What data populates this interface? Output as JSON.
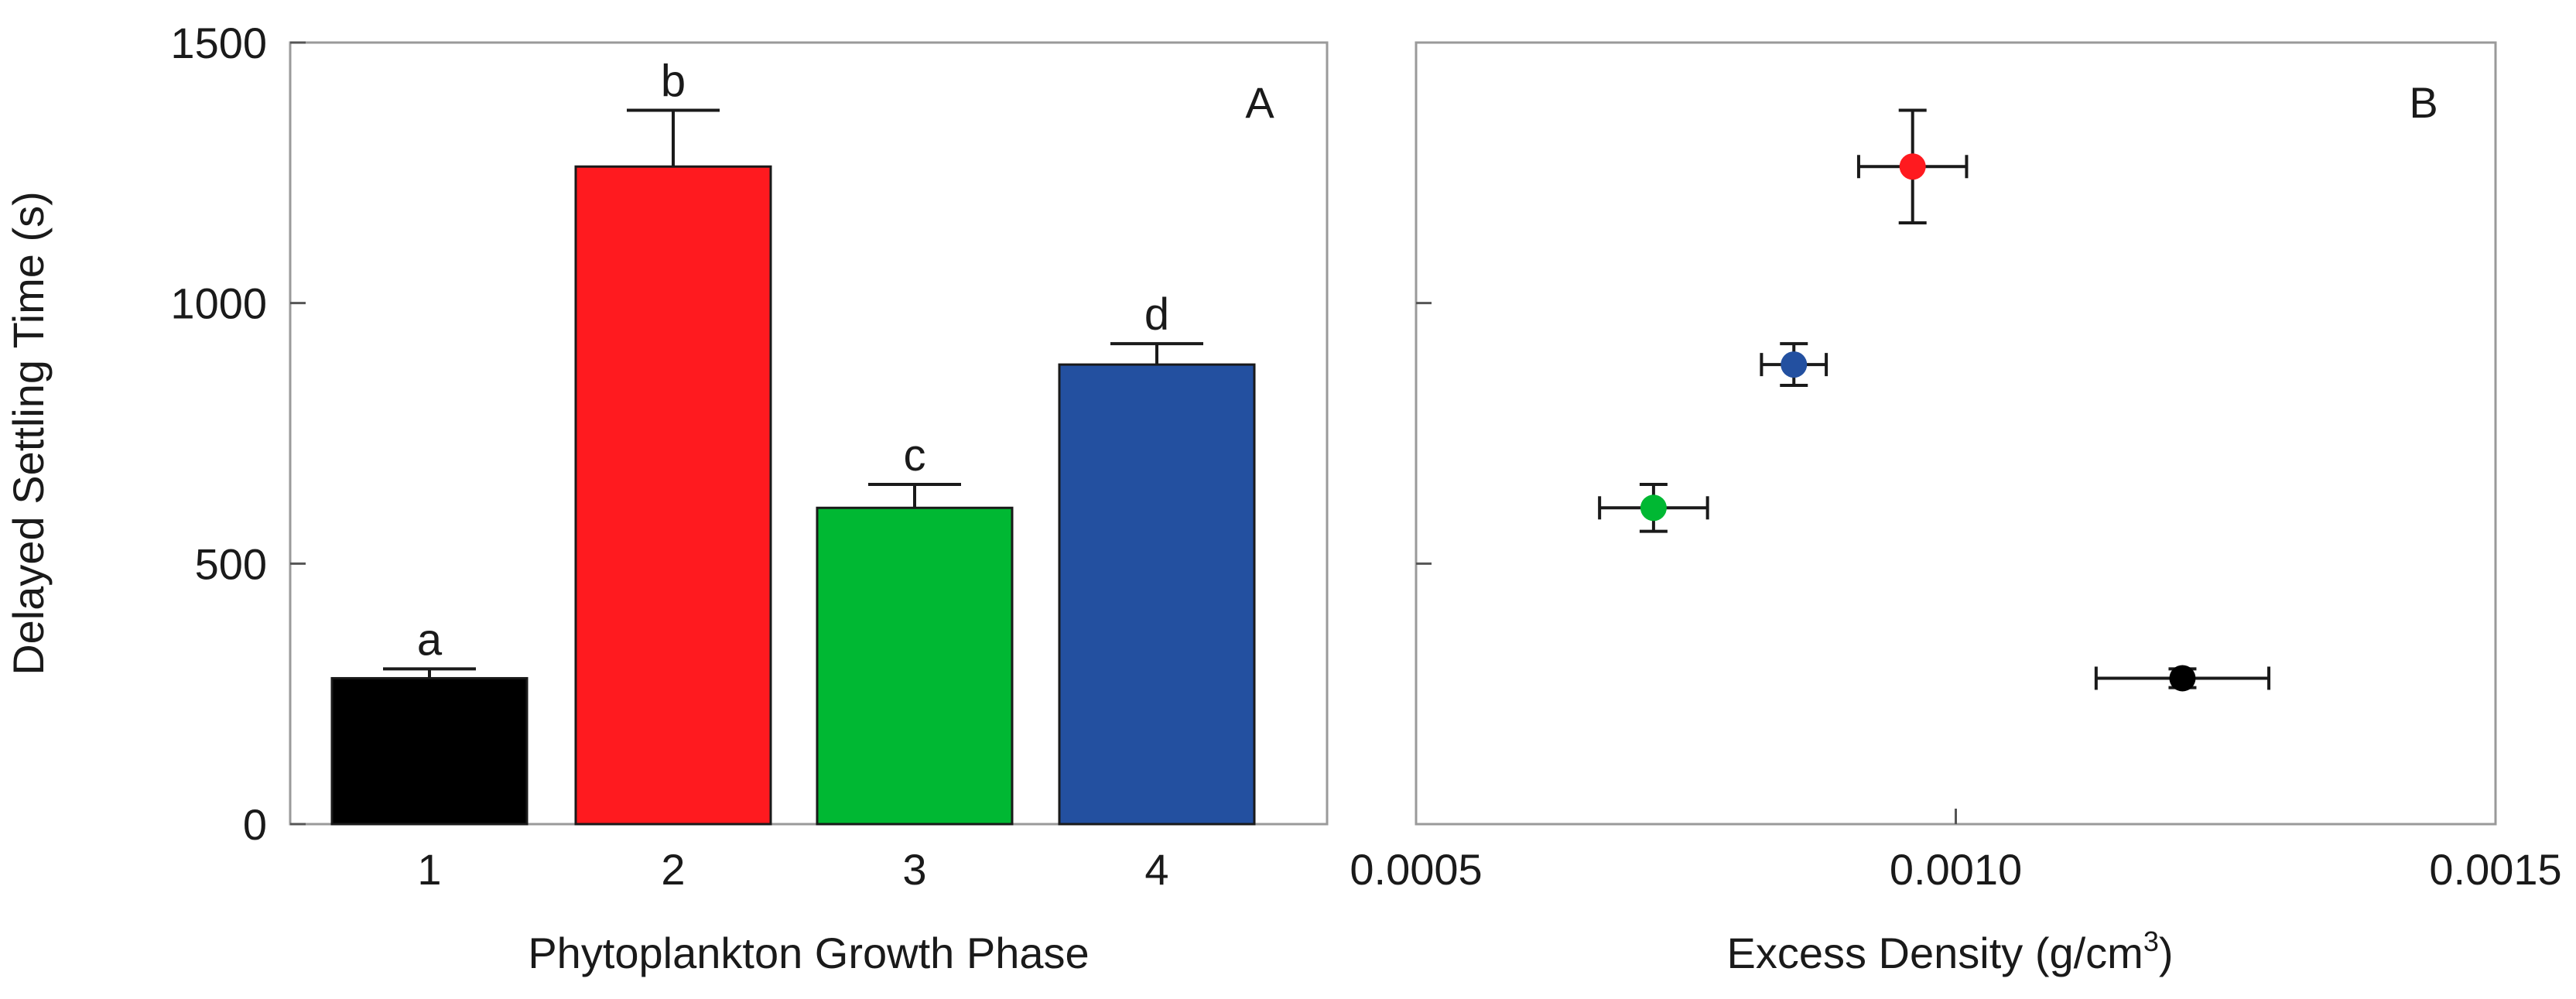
{
  "chart_data": [
    {
      "panel": "A",
      "type": "bar",
      "panel_label": "A",
      "categories": [
        "1",
        "2",
        "3",
        "4"
      ],
      "values": [
        280,
        1262,
        607,
        882
      ],
      "errors": [
        18,
        108,
        45,
        40
      ],
      "significance_letters": [
        "a",
        "b",
        "c",
        "d"
      ],
      "colors": [
        "#000000",
        "#ff1a1f",
        "#00b833",
        "#2350a0"
      ],
      "xlabel": "Phytoplankton Growth Phase",
      "ylabel": "Delayed Settling Time (s)",
      "ylim": [
        0,
        1500
      ],
      "yticks": [
        "0",
        "500",
        "1000",
        "1500"
      ],
      "grid": false
    },
    {
      "panel": "B",
      "type": "scatter",
      "panel_label": "B",
      "points": [
        {
          "x": 0.00121,
          "y": 280,
          "xerr": 8e-05,
          "yerr": 18,
          "color": "#000000"
        },
        {
          "x": 0.00096,
          "y": 1262,
          "xerr": 5e-05,
          "yerr": 108,
          "color": "#ff1a1f"
        },
        {
          "x": 0.00072,
          "y": 607,
          "xerr": 5e-05,
          "yerr": 45,
          "color": "#00b833"
        },
        {
          "x": 0.00085,
          "y": 882,
          "xerr": 3e-05,
          "yerr": 40,
          "color": "#2350a0"
        }
      ],
      "xlabel_main": "Excess Density (g/cm",
      "xlabel_sup": "3",
      "xlabel_end": ")",
      "xlim": [
        0.0005,
        0.0015
      ],
      "xticks": [
        "0.0005",
        "0.0010",
        "0.0015"
      ],
      "ylim": [
        0,
        1500
      ],
      "grid": false
    }
  ]
}
